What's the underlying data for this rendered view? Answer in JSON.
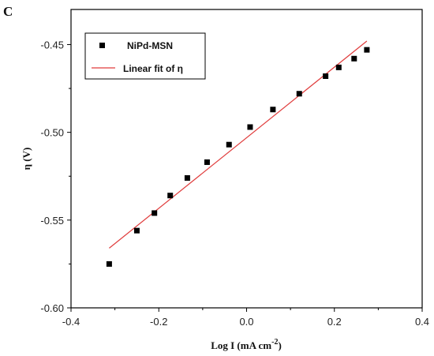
{
  "panel_label": "C",
  "chart_data": {
    "type": "scatter",
    "xlabel": "Log I (mA cm",
    "xlabel_sup": "-2",
    "xlabel_close": ")",
    "ylabel": "η (V)",
    "xlim": [
      -0.4,
      0.4
    ],
    "ylim": [
      -0.6,
      -0.43
    ],
    "xticks": [
      -0.4,
      -0.2,
      0.0,
      0.2,
      0.4
    ],
    "xtick_labels": [
      "-0.4",
      "-0.2",
      "0.0",
      "0.2",
      "0.4"
    ],
    "yticks": [
      -0.6,
      -0.55,
      -0.5,
      -0.45
    ],
    "ytick_labels": [
      "-0.60",
      "-0.55",
      "-0.50",
      "-0.45"
    ],
    "grid": false,
    "legend_position": "top-left",
    "series": [
      {
        "name": "NiPd-MSN",
        "kind": "scatter",
        "marker": "square",
        "color": "#000000",
        "x": [
          -0.313,
          -0.25,
          -0.21,
          -0.174,
          -0.135,
          -0.09,
          -0.04,
          0.008,
          0.06,
          0.12,
          0.18,
          0.21,
          0.245,
          0.274
        ],
        "y": [
          -0.575,
          -0.556,
          -0.546,
          -0.536,
          -0.526,
          -0.517,
          -0.507,
          -0.497,
          -0.487,
          -0.478,
          -0.468,
          -0.463,
          -0.458,
          -0.453
        ]
      },
      {
        "name": "Linear fit of η",
        "kind": "line",
        "color": "#e03c3c",
        "x": [
          -0.313,
          0.274
        ],
        "y": [
          -0.566,
          -0.448
        ]
      }
    ]
  }
}
